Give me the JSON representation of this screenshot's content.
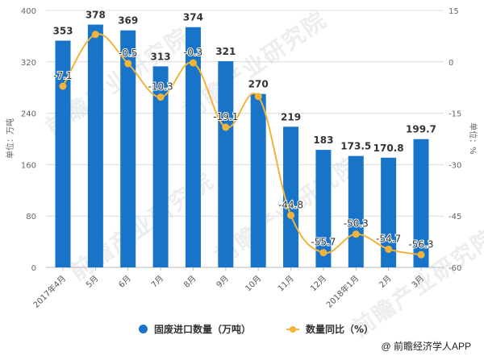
{
  "chart_data": {
    "type": "bar+line",
    "title": "",
    "categories": [
      "2017年4月",
      "5月",
      "6月",
      "7月",
      "8月",
      "9月",
      "10月",
      "11月",
      "12月",
      "2018年1月",
      "2月",
      "3月"
    ],
    "series": [
      {
        "name": "固废进口数量（万吨）",
        "type": "bar",
        "axis": "left",
        "color": "#1874c9",
        "values": [
          353,
          378,
          369,
          313,
          374,
          321,
          270,
          219,
          183,
          173.5,
          170.8,
          199.7
        ],
        "labels": [
          "353",
          "378",
          "369",
          "313",
          "374",
          "321",
          "270",
          "219",
          "183",
          "173.5",
          "170.8",
          "199.7"
        ]
      },
      {
        "name": "数量同比（%）",
        "type": "line",
        "axis": "right",
        "color": "#f1b43a",
        "values": [
          -7.1,
          8.0,
          -0.5,
          -10.3,
          -0.3,
          -19.1,
          -10.1,
          -44.8,
          -55.7,
          -50.3,
          -54.7,
          -56.3
        ],
        "labels": [
          "-7.1",
          "",
          "-0.5",
          "-10.3",
          "-0.3",
          "-19.1",
          "",
          "-44.8",
          "-55.7",
          "-50.3",
          "-54.7",
          "-56.3"
        ]
      }
    ],
    "left_axis": {
      "label": "单位：万吨",
      "ticks": [
        0,
        80,
        160,
        240,
        320,
        400
      ],
      "range": [
        0,
        400
      ]
    },
    "right_axis": {
      "label": "单位：%",
      "ticks": [
        -60,
        -45,
        -30,
        -15,
        0,
        15
      ],
      "range": [
        -60,
        15
      ]
    },
    "grid": true,
    "legend_position": "bottom"
  },
  "legend": {
    "bar_label": "固废进口数量（万吨）",
    "line_label": "数量同比（%）",
    "bar_color": "#1874c9",
    "line_color": "#f1b43a"
  },
  "footer": {
    "credit": "@ 前瞻经济学人APP"
  },
  "watermark": {
    "text": "前瞻产业研究院"
  }
}
